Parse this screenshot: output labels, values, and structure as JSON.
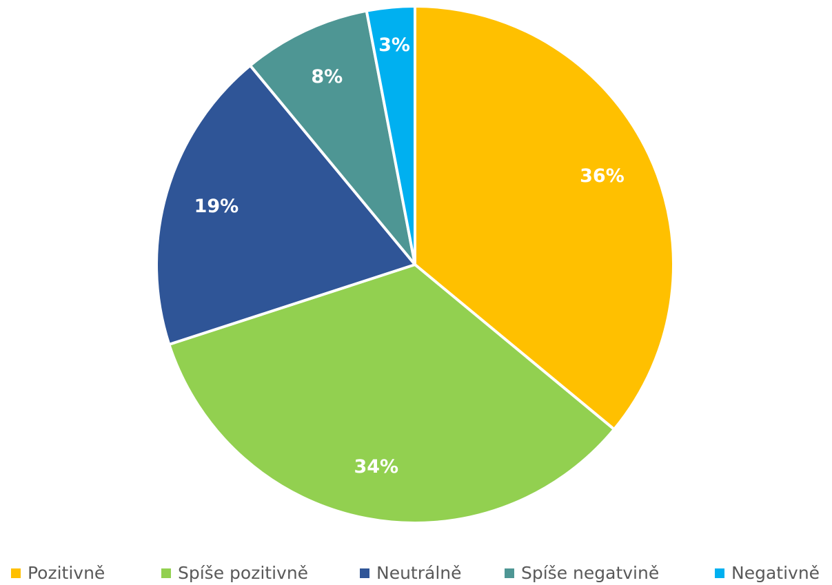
{
  "chart_data": {
    "type": "pie",
    "categories": [
      "Pozitivně",
      "Spíše pozitivně",
      "Neutrálně",
      "Spíše negatvině",
      "Negativně"
    ],
    "values": [
      36,
      34,
      19,
      8,
      3
    ],
    "value_labels": [
      "36%",
      "34%",
      "19%",
      "8%",
      "3%"
    ],
    "colors": [
      "#FFC000",
      "#92D050",
      "#2F5597",
      "#4E9694",
      "#00B0F0"
    ],
    "legend": "bottom"
  }
}
